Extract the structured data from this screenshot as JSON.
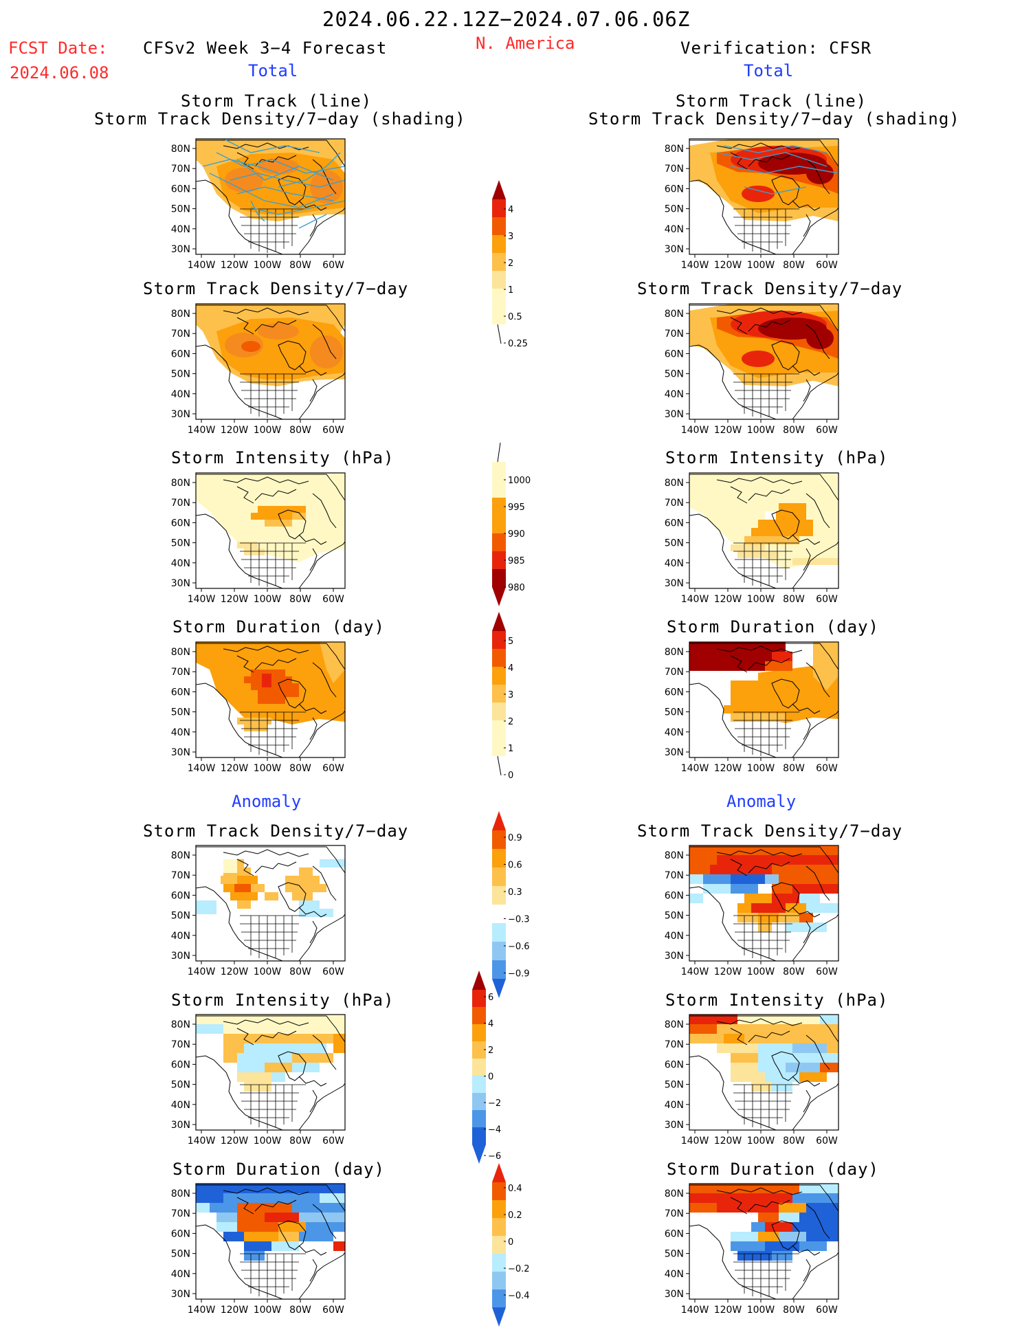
{
  "header": {
    "period": "2024.06.22.12Z−2024.07.06.06Z",
    "fcst_label": "FCST Date:",
    "fcst_date": "2024.06.08",
    "model": "CFSv2 Week 3−4 Forecast",
    "region": "N. America",
    "verification": "Verification: CFSR"
  },
  "sections": {
    "total_left": "Total",
    "total_right": "Total",
    "anomaly_left": "Anomaly",
    "anomaly_right": "Anomaly"
  },
  "panel_titles": {
    "p0_line1": "Storm Track (line)",
    "p0_line2": "Storm Track Density/7−day (shading)",
    "density": "Storm Track Density/7−day",
    "intensity": "Storm Intensity (hPa)",
    "duration": "Storm Duration (day)"
  },
  "axes": {
    "lat_ticks": [
      "80N",
      "70N",
      "60N",
      "50N",
      "40N",
      "30N"
    ],
    "lon_ticks": [
      "140W",
      "120W",
      "100W",
      "80W",
      "60W"
    ]
  },
  "colorbars": {
    "total_density": {
      "labels": [
        "4",
        "3",
        "2",
        "1",
        "0.5",
        "0.25"
      ]
    },
    "total_intensity": {
      "labels": [
        "1000",
        "995",
        "990",
        "985",
        "980"
      ]
    },
    "total_duration": {
      "labels": [
        "5",
        "4",
        "3",
        "2",
        "1",
        "0"
      ]
    },
    "anom_density": {
      "labels": [
        "0.9",
        "0.6",
        "0.3",
        "−0.3",
        "−0.6",
        "−0.9"
      ]
    },
    "anom_intensity": {
      "labels": [
        "6",
        "4",
        "2",
        "0",
        "−2",
        "−4",
        "−6"
      ]
    },
    "anom_duration": {
      "labels": [
        "0.4",
        "0.2",
        "0",
        "−0.2",
        "−0.4"
      ]
    }
  },
  "colors": {
    "dark_red": "#a00000",
    "red": "#e8250b",
    "orange_red": "#f25a00",
    "orange": "#fca00c",
    "gold": "#fdc04a",
    "yellow": "#fce49a",
    "pale_yellow": "#fff8c4",
    "pale_blue": "#b8ecff",
    "light_blue": "#8ec8f2",
    "blue": "#4c96e8",
    "dark_blue": "#1f62d8",
    "title_blue": "#1f3cff",
    "fcst_red": "#ff2a2a",
    "track_cyan": "#3ba0d0"
  }
}
